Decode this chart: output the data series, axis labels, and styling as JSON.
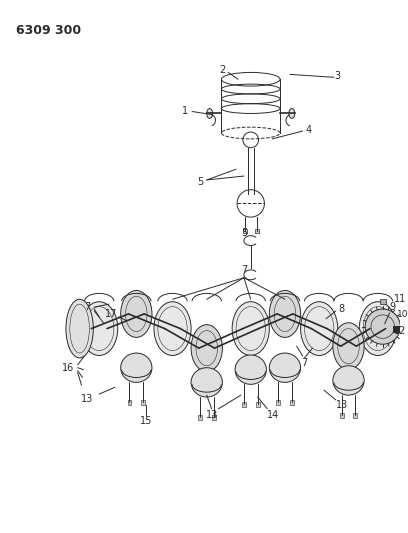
{
  "title": "6309 300",
  "bg_color": "#ffffff",
  "line_color": "#2a2a2a",
  "fig_width": 4.08,
  "fig_height": 5.33,
  "dpi": 100
}
